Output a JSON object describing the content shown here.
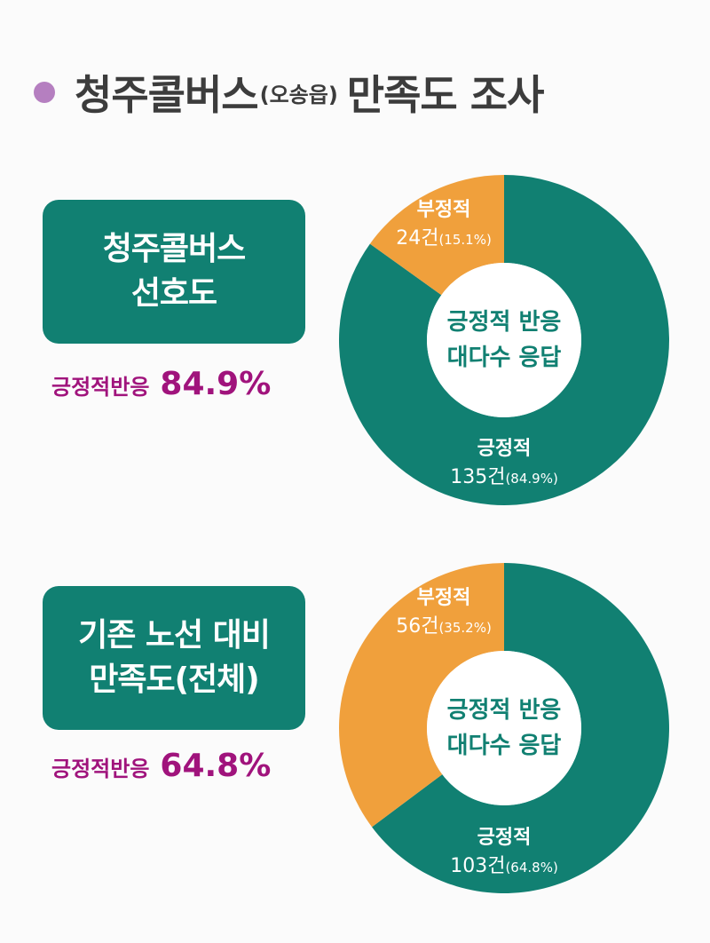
{
  "header": {
    "title_main": "청주콜버스",
    "title_sub": "(오송읍)",
    "title_tail": "만족도 조사"
  },
  "colors": {
    "teal": "#118072",
    "orange": "#f0a03c",
    "magenta": "#a0137c",
    "bullet": "#b57fc0"
  },
  "panels": [
    {
      "box_lines": [
        "청주콜버스",
        "선호도"
      ],
      "stat_label": "긍정적반응",
      "stat_value": "84.9%",
      "center_lines": [
        "긍정적 반응",
        "대다수 응답"
      ]
    },
    {
      "box_lines": [
        "기존 노선 대비",
        "만족도(전체)"
      ],
      "stat_label": "긍정적반응",
      "stat_value": "64.8%",
      "center_lines": [
        "긍정적 반응",
        "대다수 응답"
      ]
    }
  ],
  "chart_data": [
    {
      "type": "pie",
      "categories": [
        "긍정적",
        "부정적"
      ],
      "values": [
        135,
        24
      ],
      "value_labels": [
        "135건",
        "24건"
      ],
      "percent_labels": [
        "(84.9%)",
        "(15.1%)"
      ],
      "percents": [
        84.9,
        15.1
      ],
      "colors": [
        "#118072",
        "#f0a03c"
      ],
      "title": ""
    },
    {
      "type": "pie",
      "categories": [
        "긍정적",
        "부정적"
      ],
      "values": [
        103,
        56
      ],
      "value_labels": [
        "103건",
        "56건"
      ],
      "percent_labels": [
        "(64.8%)",
        "(35.2%)"
      ],
      "percents": [
        64.8,
        35.2
      ],
      "colors": [
        "#118072",
        "#f0a03c"
      ],
      "title": ""
    }
  ]
}
